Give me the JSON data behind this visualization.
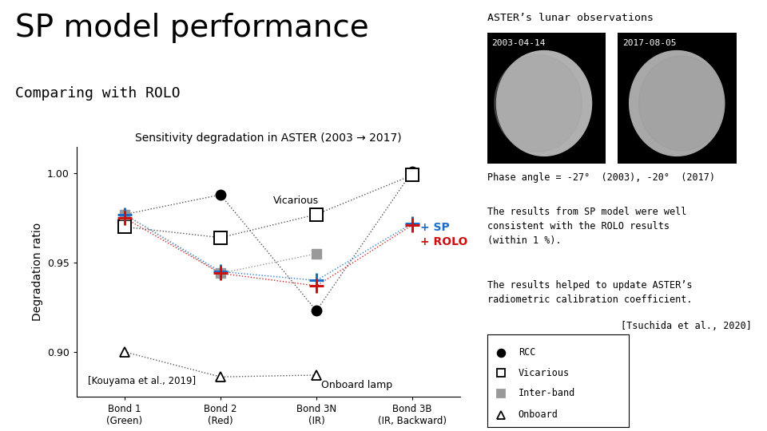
{
  "title_main": "SP model performance",
  "subtitle": "Comparing with ROLO",
  "chart_title": "Sensitivity degradation in ASTER (2003 → 2017)",
  "ylabel": "Degradation ratio",
  "x_positions": [
    0,
    1,
    2,
    3
  ],
  "x_labels": [
    "Bond 1\n(Green)",
    "Bond 2\n(Red)",
    "Bond 3N\n(IR)",
    "Bond 3B\n(IR, Backward)"
  ],
  "ylim": [
    0.875,
    1.015
  ],
  "yticks": [
    0.9,
    0.95,
    1.0
  ],
  "rcc_values": [
    0.977,
    0.988,
    0.923,
    1.001
  ],
  "vicarious_values": [
    0.97,
    0.964,
    0.977,
    0.999
  ],
  "interband_values": [
    0.977,
    0.944,
    0.955,
    null
  ],
  "onboard_values": [
    0.9,
    0.886,
    0.887,
    null
  ],
  "sp_values": [
    0.977,
    0.945,
    0.94,
    0.972
  ],
  "rolo_values": [
    0.975,
    0.944,
    0.937,
    0.971
  ],
  "sp_color": "#1a6fcc",
  "rolo_color": "#cc1111",
  "rcc_color": "#000000",
  "vicarious_color": "#000000",
  "interband_color": "#888888",
  "onboard_color": "#000000",
  "aster_obs_title": "ASTER’s lunar observations",
  "date1": "2003-04-14",
  "date2": "2017-08-05",
  "phase_angle_text": "Phase angle = -27°  (2003), -20°  (2017)",
  "results_text1": "The results from SP model were well\nconsistent with the ROLO results\n(within 1 %).",
  "results_text2": "The results helped to update ASTER’s\nradiometric calibration coefficient.",
  "citation": "[Tsuchida et al., 2020]",
  "kouyama_text": "[Kouyama et al., 2019]",
  "vicarious_label": "Vicarious",
  "onboard_label": "Onboard lamp",
  "sp_label": "+ SP",
  "rolo_label": "+ ROLO",
  "legend_items": [
    "RCC",
    "Vicarious",
    "Inter-band",
    "Onboard"
  ],
  "bg_color": "#ffffff"
}
